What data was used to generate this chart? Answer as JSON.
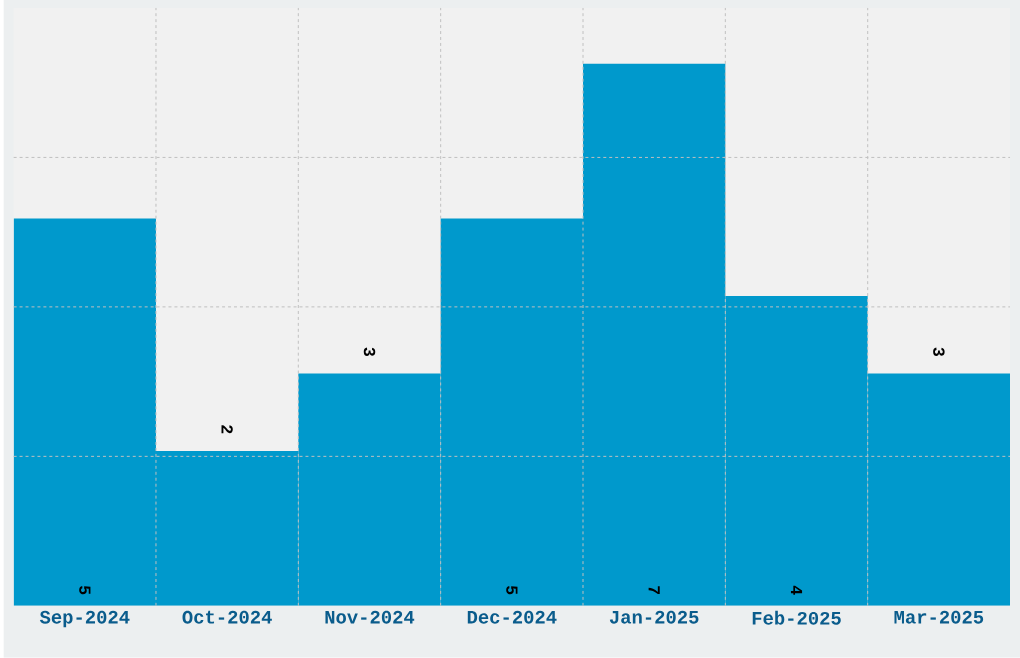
{
  "chart_data": {
    "type": "bar",
    "categories": [
      "Sep-2024",
      "Oct-2024",
      "Nov-2024",
      "Dec-2024",
      "Jan-2025",
      "Feb-2025",
      "Mar-2025"
    ],
    "values": [
      5,
      2,
      3,
      5,
      7,
      4,
      3
    ],
    "color": "#0099cc",
    "ylim": [
      0,
      7.72
    ],
    "yticks": [
      {
        "value": 1.93,
        "label": null
      },
      {
        "value": 3.86,
        "label": null
      },
      {
        "value": 5.79,
        "label": null
      }
    ],
    "tick_labels": "x",
    "grid": true,
    "data_labels": true
  }
}
